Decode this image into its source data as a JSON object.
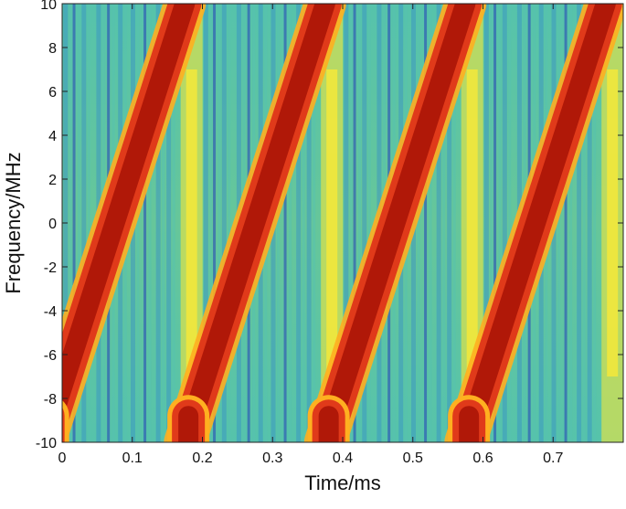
{
  "chart_data": {
    "type": "heatmap",
    "subtype": "spectrogram",
    "title": "",
    "xlabel": "Time/ms",
    "ylabel": "Frequency/MHz",
    "xlim": [
      0,
      0.8
    ],
    "ylim": [
      -10,
      10
    ],
    "x_ticks": [
      0,
      0.1,
      0.2,
      0.3,
      0.4,
      0.5,
      0.6,
      0.7
    ],
    "x_tick_labels": [
      "0",
      "0.1",
      "0.2",
      "0.3",
      "0.4",
      "0.5",
      "0.6",
      "0.7"
    ],
    "y_ticks": [
      -10,
      -8,
      -6,
      -4,
      -2,
      0,
      2,
      4,
      6,
      8,
      10
    ],
    "y_tick_labels": [
      "-10",
      "-8",
      "-6",
      "-4",
      "-2",
      "0",
      "2",
      "4",
      "6",
      "8",
      "10"
    ],
    "grid": false,
    "colormap": "parula-like",
    "colors": {
      "background": "#5fc39a",
      "background_light": "#55c2b0",
      "streak": "#2a7fd0",
      "streak_dark": "#2440b8",
      "ridge": "#f4e83a",
      "chirp_edge": "#ffb020",
      "chirp_mid": "#e03a1a",
      "chirp_core": "#b01808"
    },
    "series": [
      {
        "segments": [
          {
            "t_start": -0.025,
            "t_end": 0.175,
            "f_start": -10,
            "f_end": 10
          },
          {
            "t_start": 0.175,
            "t_end": 0.375,
            "f_start": -10,
            "f_end": 10
          },
          {
            "t_start": 0.375,
            "t_end": 0.575,
            "f_start": -10,
            "f_end": 10
          },
          {
            "t_start": 0.575,
            "t_end": 0.775,
            "f_start": -10,
            "f_end": 10
          }
        ]
      }
    ],
    "chirp_period_ms": 0.2,
    "bandwidth_mhz": 20
  }
}
